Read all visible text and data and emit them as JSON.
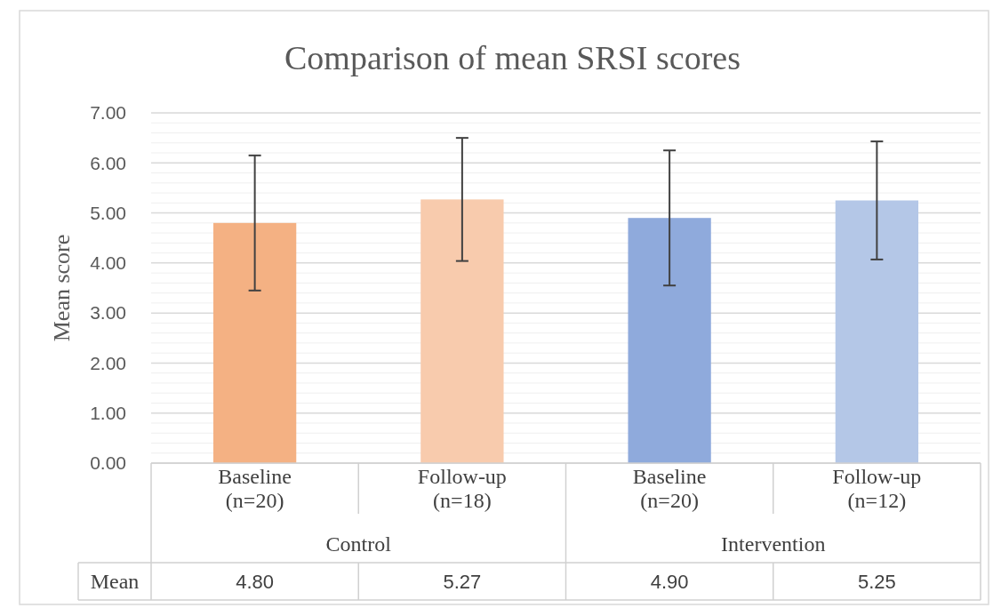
{
  "chart_data": {
    "type": "bar",
    "title": "Comparison of mean SRSI scores",
    "ylabel": "Mean score",
    "categories": [
      "Baseline (n=20)",
      "Follow-up (n=18)",
      "Baseline (n=20)",
      "Follow-up (n=12)"
    ],
    "values": [
      4.8,
      5.27,
      4.9,
      5.25
    ],
    "colors": [
      "#f4b183",
      "#f8cbad",
      "#8faadc",
      "#b4c7e7"
    ],
    "errors": [
      1.35,
      1.23,
      1.35,
      1.18
    ],
    "value_labels": [
      "4.80",
      "5.27",
      "4.90",
      "5.25"
    ],
    "annotations": [
      "Control",
      "Intervention",
      "Mean"
    ],
    "ylim": [
      0,
      7
    ],
    "yticks": [
      {
        "value": 0,
        "label": "0.00"
      },
      {
        "value": 1,
        "label": "1.00"
      },
      {
        "value": 2,
        "label": "2.00"
      },
      {
        "value": 3,
        "label": "3.00"
      },
      {
        "value": 4,
        "label": "4.00"
      },
      {
        "value": 5,
        "label": "5.00"
      },
      {
        "value": 6,
        "label": "6.00"
      },
      {
        "value": 7,
        "label": "7.00"
      }
    ],
    "grid": true
  }
}
